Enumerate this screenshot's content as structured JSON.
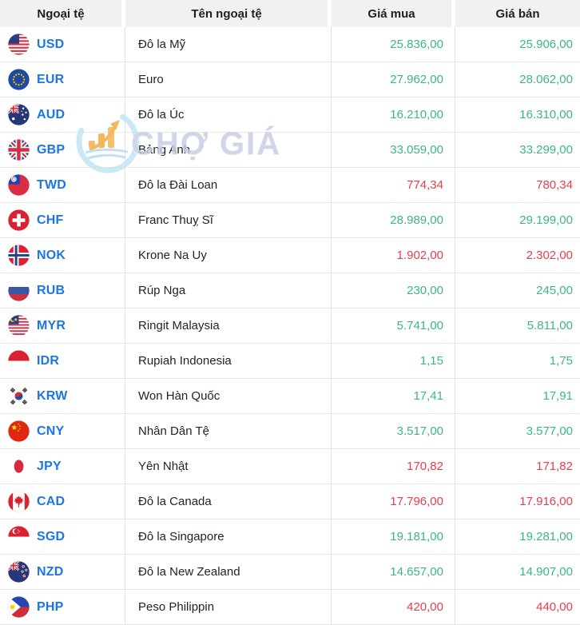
{
  "table": {
    "headers": [
      "Ngoại tệ",
      "Tên ngoại tệ",
      "Giá mua",
      "Giá bán"
    ],
    "rows": [
      {
        "code": "USD",
        "flag": "usd",
        "name": "Đô la Mỹ",
        "buy": "25.836,00",
        "sell": "25.906,00",
        "direction": "up"
      },
      {
        "code": "EUR",
        "flag": "eur",
        "name": "Euro",
        "buy": "27.962,00",
        "sell": "28.062,00",
        "direction": "up"
      },
      {
        "code": "AUD",
        "flag": "aud",
        "name": "Đô la Úc",
        "buy": "16.210,00",
        "sell": "16.310,00",
        "direction": "up"
      },
      {
        "code": "GBP",
        "flag": "gbp",
        "name": "Bảng Anh",
        "buy": "33.059,00",
        "sell": "33.299,00",
        "direction": "up"
      },
      {
        "code": "TWD",
        "flag": "twd",
        "name": "Đô la Đài Loan",
        "buy": "774,34",
        "sell": "780,34",
        "direction": "down"
      },
      {
        "code": "CHF",
        "flag": "chf",
        "name": "Franc Thuỵ Sĩ",
        "buy": "28.989,00",
        "sell": "29.199,00",
        "direction": "up"
      },
      {
        "code": "NOK",
        "flag": "nok",
        "name": "Krone Na Uy",
        "buy": "1.902,00",
        "sell": "2.302,00",
        "direction": "down"
      },
      {
        "code": "RUB",
        "flag": "rub",
        "name": "Rúp Nga",
        "buy": "230,00",
        "sell": "245,00",
        "direction": "up"
      },
      {
        "code": "MYR",
        "flag": "myr",
        "name": "Ringit Malaysia",
        "buy": "5.741,00",
        "sell": "5.811,00",
        "direction": "up"
      },
      {
        "code": "IDR",
        "flag": "idr",
        "name": "Rupiah Indonesia",
        "buy": "1,15",
        "sell": "1,75",
        "direction": "up"
      },
      {
        "code": "KRW",
        "flag": "krw",
        "name": "Won Hàn Quốc",
        "buy": "17,41",
        "sell": "17,91",
        "direction": "up"
      },
      {
        "code": "CNY",
        "flag": "cny",
        "name": "Nhân Dân Tệ",
        "buy": "3.517,00",
        "sell": "3.577,00",
        "direction": "up"
      },
      {
        "code": "JPY",
        "flag": "jpy",
        "name": "Yên Nhật",
        "buy": "170,82",
        "sell": "171,82",
        "direction": "down"
      },
      {
        "code": "CAD",
        "flag": "cad",
        "name": "Đô la Canada",
        "buy": "17.796,00",
        "sell": "17.916,00",
        "direction": "down"
      },
      {
        "code": "SGD",
        "flag": "sgd",
        "name": "Đô la Singapore",
        "buy": "19.181,00",
        "sell": "19.281,00",
        "direction": "up"
      },
      {
        "code": "NZD",
        "flag": "nzd",
        "name": "Đô la New Zealand",
        "buy": "14.657,00",
        "sell": "14.907,00",
        "direction": "up"
      },
      {
        "code": "PHP",
        "flag": "php",
        "name": "Peso Philippin",
        "buy": "420,00",
        "sell": "440,00",
        "direction": "down"
      }
    ]
  },
  "watermark": {
    "text": "CHỢ GIÁ"
  },
  "colors": {
    "price_up": "#3eb489",
    "price_down": "#e5404e",
    "code_link": "#1a76e8",
    "header_bg": "#f1f1f1",
    "row_border": "#e8e8e8",
    "watermark_text": "#c7cde4"
  }
}
